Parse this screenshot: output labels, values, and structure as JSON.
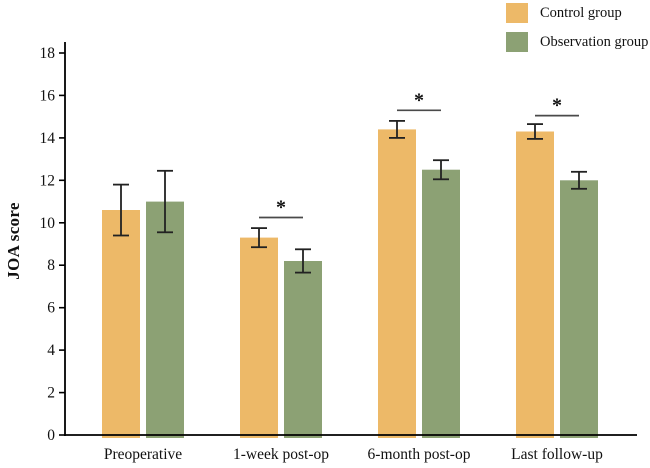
{
  "chart_data": {
    "type": "bar",
    "title": "",
    "xlabel": "",
    "ylabel": "JOA score",
    "categories": [
      "Preoperative",
      "1-week post-op",
      "6-month post-op",
      "Last follow-up"
    ],
    "series": [
      {
        "name": "Control group",
        "color": "#EDB968",
        "values": [
          10.6,
          9.3,
          14.4,
          14.3
        ],
        "errors": [
          1.2,
          0.45,
          0.4,
          0.35
        ]
      },
      {
        "name": "Observation group",
        "color": "#8CA174",
        "values": [
          11.0,
          8.2,
          12.5,
          12.0
        ],
        "errors": [
          1.45,
          0.55,
          0.45,
          0.4
        ]
      }
    ],
    "ylim": [
      0,
      18
    ],
    "yticks": [
      0,
      2,
      4,
      6,
      8,
      10,
      12,
      14,
      16,
      18
    ],
    "grid": false,
    "legend_position": "top-right",
    "axis_color": "#000000",
    "error_bar_color": "#222222",
    "significance_line_color": "#4a4a4a",
    "significance_markers": [
      {
        "category_index": 1,
        "label": "*",
        "line_value": 10.25
      },
      {
        "category_index": 2,
        "label": "*",
        "line_value": 15.3
      },
      {
        "category_index": 3,
        "label": "*",
        "line_value": 15.05
      }
    ]
  }
}
